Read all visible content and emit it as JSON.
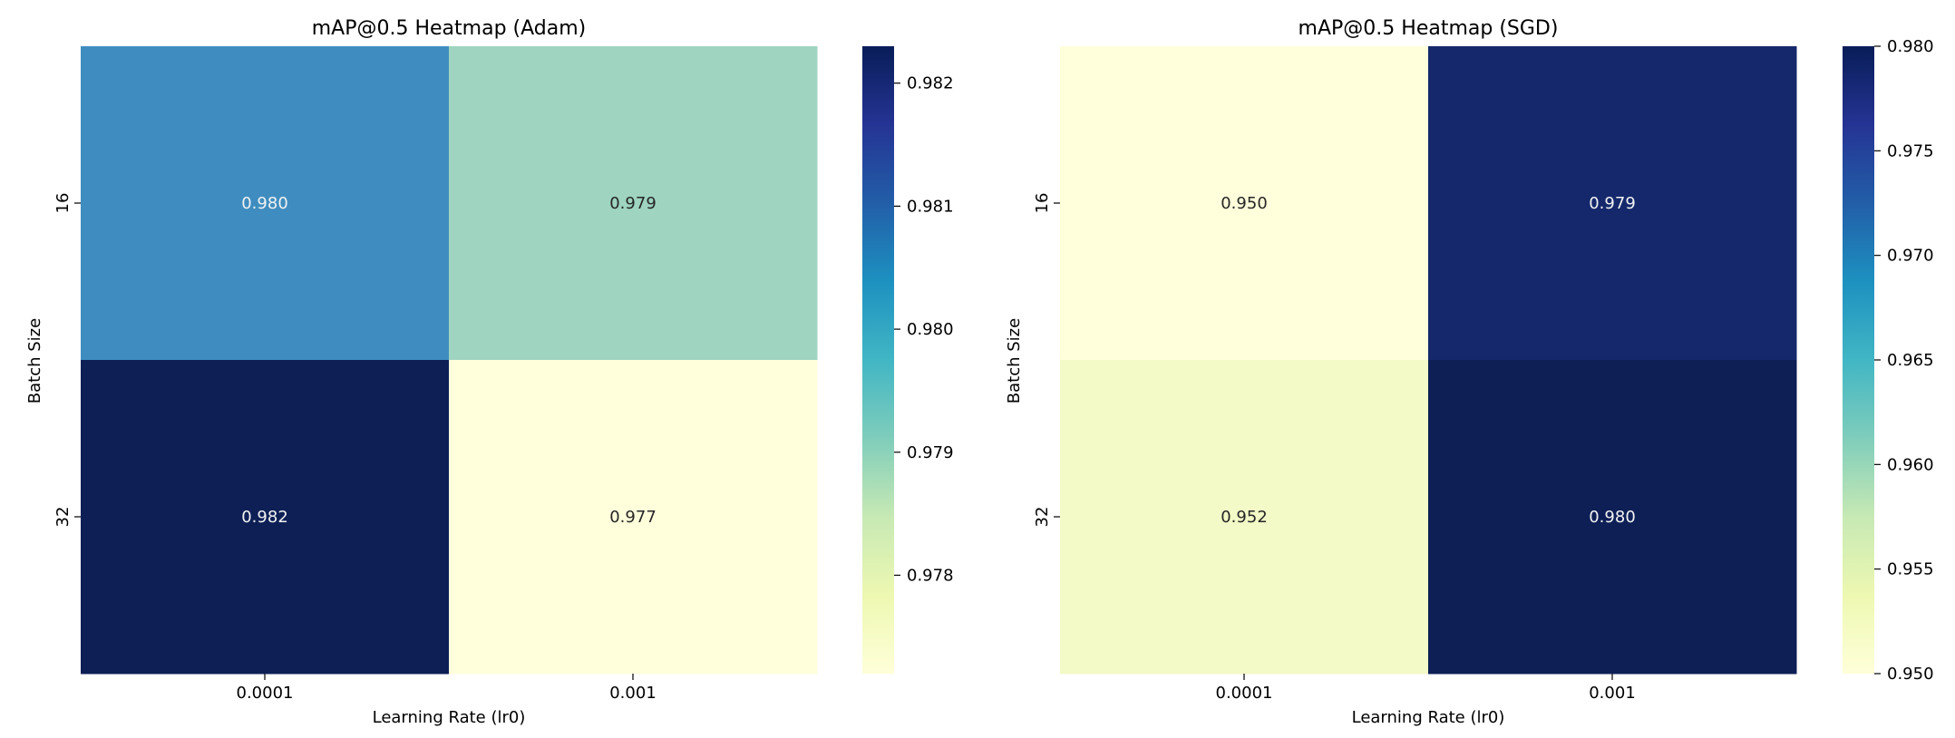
{
  "chart_data": [
    {
      "type": "heatmap",
      "title": "mAP@0.5 Heatmap (Adam)",
      "xlabel": "Learning Rate (lr0)",
      "ylabel": "Batch Size",
      "x_categories": [
        "0.0001",
        "0.001"
      ],
      "y_categories": [
        "16",
        "32"
      ],
      "values": [
        [
          0.98,
          0.979
        ],
        [
          0.982,
          0.977
        ]
      ],
      "cell_colors": [
        [
          "#3f8dc0",
          "#9ed4c0"
        ],
        [
          "#0d1f55",
          "#ffffdc"
        ]
      ],
      "annotations": [
        [
          "0.980",
          "0.979"
        ],
        [
          "0.982",
          "0.977"
        ]
      ],
      "annotation_colors": [
        [
          "#f2f2f2",
          "#262626"
        ],
        [
          "#f2f2f2",
          "#262626"
        ]
      ],
      "colormap": "YlGnBu",
      "colorbar": {
        "vmin": 0.9772,
        "vmax": 0.9823,
        "ticks": [
          0.978,
          0.979,
          0.98,
          0.981,
          0.982
        ],
        "tick_labels": [
          "0.978",
          "0.979",
          "0.980",
          "0.981",
          "0.982"
        ]
      }
    },
    {
      "type": "heatmap",
      "title": "mAP@0.5 Heatmap (SGD)",
      "xlabel": "Learning Rate (lr0)",
      "ylabel": "Batch Size",
      "x_categories": [
        "0.0001",
        "0.001"
      ],
      "y_categories": [
        "16",
        "32"
      ],
      "values": [
        [
          0.95,
          0.979
        ],
        [
          0.952,
          0.98
        ]
      ],
      "cell_colors": [
        [
          "#ffffdc",
          "#14286b"
        ],
        [
          "#f3f9c7",
          "#0d1f55"
        ]
      ],
      "annotations": [
        [
          "0.950",
          "0.979"
        ],
        [
          "0.952",
          "0.980"
        ]
      ],
      "annotation_colors": [
        [
          "#262626",
          "#f2f2f2"
        ],
        [
          "#262626",
          "#f2f2f2"
        ]
      ],
      "colormap": "YlGnBu",
      "colorbar": {
        "vmin": 0.95,
        "vmax": 0.98,
        "ticks": [
          0.95,
          0.955,
          0.96,
          0.965,
          0.97,
          0.975,
          0.98
        ],
        "tick_labels": [
          "0.950",
          "0.955",
          "0.960",
          "0.965",
          "0.970",
          "0.975",
          "0.980"
        ]
      }
    }
  ]
}
